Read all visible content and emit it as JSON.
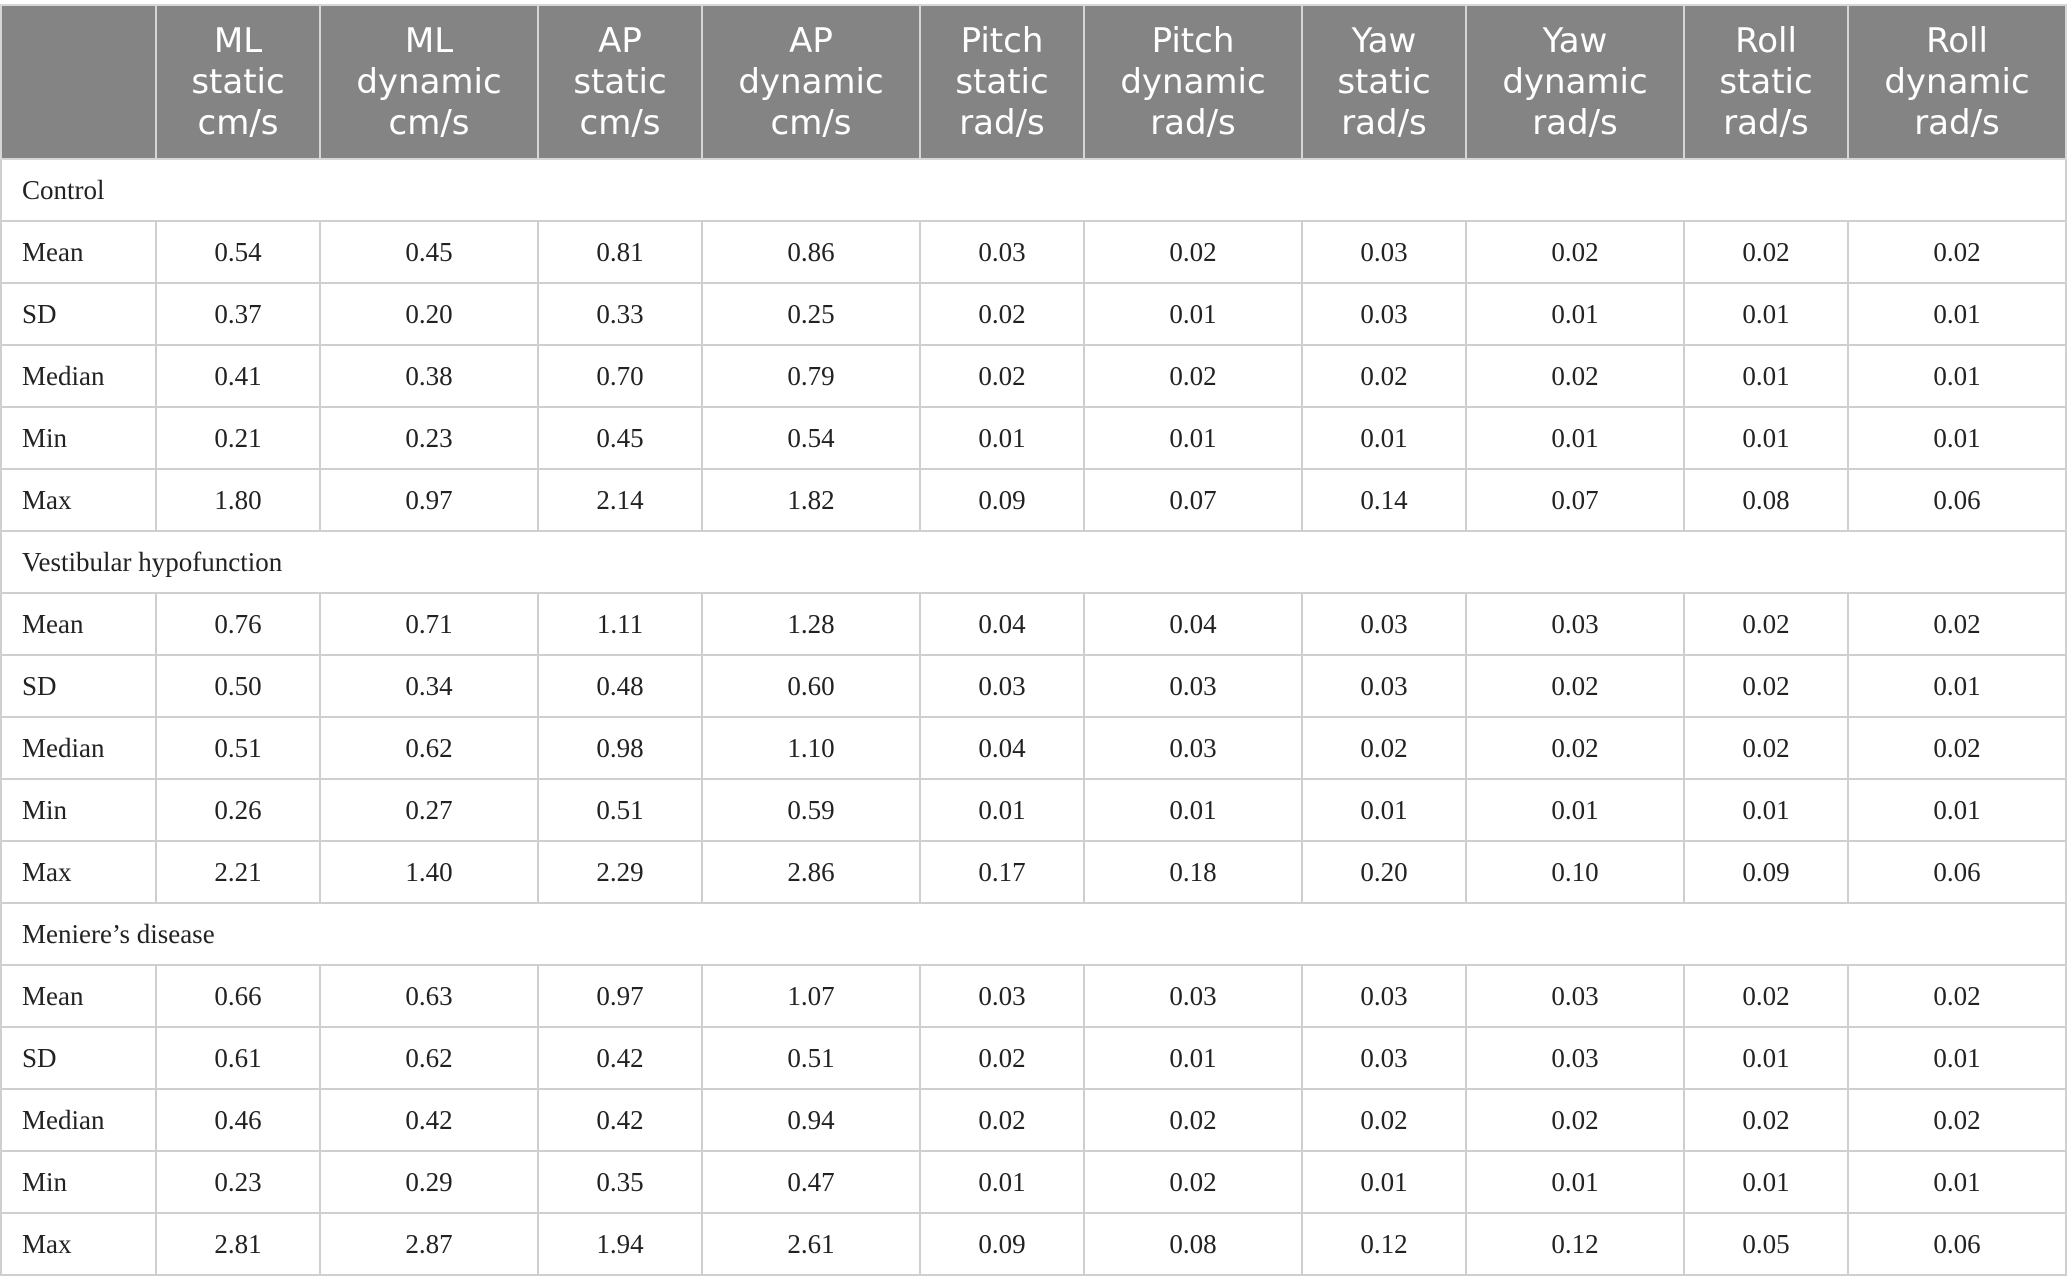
{
  "table": {
    "header": [
      {
        "lines": [
          "",
          "",
          ""
        ]
      },
      {
        "lines": [
          "ML",
          "static",
          "cm/s"
        ]
      },
      {
        "lines": [
          "ML",
          "dynamic",
          "cm/s"
        ]
      },
      {
        "lines": [
          "AP",
          "static",
          "cm/s"
        ]
      },
      {
        "lines": [
          "AP",
          "dynamic",
          "cm/s"
        ]
      },
      {
        "lines": [
          "Pitch",
          "static",
          "rad/s"
        ]
      },
      {
        "lines": [
          "Pitch",
          "dynamic",
          "rad/s"
        ]
      },
      {
        "lines": [
          "Yaw",
          "static",
          "rad/s"
        ]
      },
      {
        "lines": [
          "Yaw",
          "dynamic",
          "rad/s"
        ]
      },
      {
        "lines": [
          "Roll",
          "static",
          "rad/s"
        ]
      },
      {
        "lines": [
          "Roll",
          "dynamic",
          "rad/s"
        ]
      }
    ],
    "groups": [
      {
        "name": "Control",
        "rows": [
          {
            "label": "Mean",
            "values": [
              "0.54",
              "0.45",
              "0.81",
              "0.86",
              "0.03",
              "0.02",
              "0.03",
              "0.02",
              "0.02",
              "0.02"
            ]
          },
          {
            "label": "SD",
            "values": [
              "0.37",
              "0.20",
              "0.33",
              "0.25",
              "0.02",
              "0.01",
              "0.03",
              "0.01",
              "0.01",
              "0.01"
            ]
          },
          {
            "label": "Median",
            "values": [
              "0.41",
              "0.38",
              "0.70",
              "0.79",
              "0.02",
              "0.02",
              "0.02",
              "0.02",
              "0.01",
              "0.01"
            ]
          },
          {
            "label": "Min",
            "values": [
              "0.21",
              "0.23",
              "0.45",
              "0.54",
              "0.01",
              "0.01",
              "0.01",
              "0.01",
              "0.01",
              "0.01"
            ]
          },
          {
            "label": "Max",
            "values": [
              "1.80",
              "0.97",
              "2.14",
              "1.82",
              "0.09",
              "0.07",
              "0.14",
              "0.07",
              "0.08",
              "0.06"
            ]
          }
        ]
      },
      {
        "name": "Vestibular hypofunction",
        "rows": [
          {
            "label": "Mean",
            "values": [
              "0.76",
              "0.71",
              "1.11",
              "1.28",
              "0.04",
              "0.04",
              "0.03",
              "0.03",
              "0.02",
              "0.02"
            ]
          },
          {
            "label": "SD",
            "values": [
              "0.50",
              "0.34",
              "0.48",
              "0.60",
              "0.03",
              "0.03",
              "0.03",
              "0.02",
              "0.02",
              "0.01"
            ]
          },
          {
            "label": "Median",
            "values": [
              "0.51",
              "0.62",
              "0.98",
              "1.10",
              "0.04",
              "0.03",
              "0.02",
              "0.02",
              "0.02",
              "0.02"
            ]
          },
          {
            "label": "Min",
            "values": [
              "0.26",
              "0.27",
              "0.51",
              "0.59",
              "0.01",
              "0.01",
              "0.01",
              "0.01",
              "0.01",
              "0.01"
            ]
          },
          {
            "label": "Max",
            "values": [
              "2.21",
              "1.40",
              "2.29",
              "2.86",
              "0.17",
              "0.18",
              "0.20",
              "0.10",
              "0.09",
              "0.06"
            ]
          }
        ]
      },
      {
        "name": "Meniere’s disease",
        "rows": [
          {
            "label": "Mean",
            "values": [
              "0.66",
              "0.63",
              "0.97",
              "1.07",
              "0.03",
              "0.03",
              "0.03",
              "0.03",
              "0.02",
              "0.02"
            ]
          },
          {
            "label": "SD",
            "values": [
              "0.61",
              "0.62",
              "0.42",
              "0.51",
              "0.02",
              "0.01",
              "0.03",
              "0.03",
              "0.01",
              "0.01"
            ]
          },
          {
            "label": "Median",
            "values": [
              "0.46",
              "0.42",
              "0.42",
              "0.94",
              "0.02",
              "0.02",
              "0.02",
              "0.02",
              "0.02",
              "0.02"
            ]
          },
          {
            "label": "Min",
            "values": [
              "0.23",
              "0.29",
              "0.35",
              "0.47",
              "0.01",
              "0.02",
              "0.01",
              "0.01",
              "0.01",
              "0.01"
            ]
          },
          {
            "label": "Max",
            "values": [
              "2.81",
              "2.87",
              "1.94",
              "2.61",
              "0.09",
              "0.08",
              "0.12",
              "0.12",
              "0.05",
              "0.06"
            ]
          }
        ]
      }
    ]
  }
}
